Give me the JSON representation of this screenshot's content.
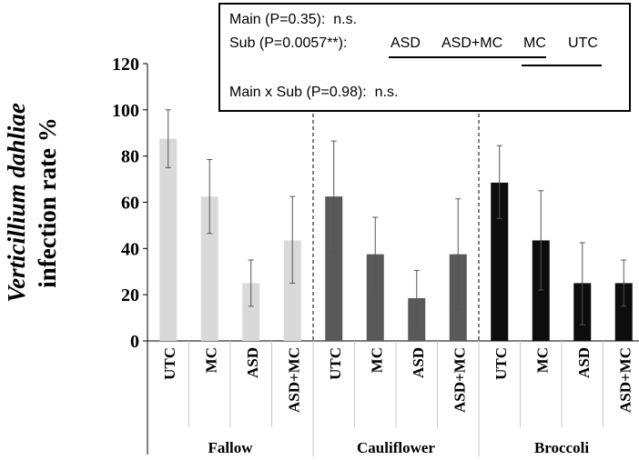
{
  "chart_data": {
    "type": "bar",
    "ylabel_line1": "Verticillium dahliae",
    "ylabel_line2": "infection rate %",
    "ylim": [
      0,
      120
    ],
    "yticks": [
      0,
      20,
      40,
      60,
      80,
      100,
      120
    ],
    "groups": [
      {
        "name": "Fallow",
        "color": "#d9d9d9",
        "bars": [
          {
            "label": "UTC",
            "value": 87.5,
            "err_low": 75,
            "err_high": 100
          },
          {
            "label": "MC",
            "value": 62.5,
            "err_low": 46.5,
            "err_high": 78.5
          },
          {
            "label": "ASD",
            "value": 25,
            "err_low": 15,
            "err_high": 35
          },
          {
            "label": "ASD+MC",
            "value": 43.5,
            "err_low": 25,
            "err_high": 62.5
          }
        ]
      },
      {
        "name": "Cauliflower",
        "color": "#595959",
        "bars": [
          {
            "label": "UTC",
            "value": 62.5,
            "err_low": 38.5,
            "err_high": 86.5
          },
          {
            "label": "MC",
            "value": 37.5,
            "err_low": 21.5,
            "err_high": 53.5
          },
          {
            "label": "ASD",
            "value": 18.5,
            "err_low": 7,
            "err_high": 30.5
          },
          {
            "label": "ASD+MC",
            "value": 37.5,
            "err_low": 13.5,
            "err_high": 61.5
          }
        ]
      },
      {
        "name": "Broccoli",
        "color": "#0d0d0d",
        "bars": [
          {
            "label": "UTC",
            "value": 68.5,
            "err_low": 53,
            "err_high": 84.5
          },
          {
            "label": "MC",
            "value": 43.5,
            "err_low": 22,
            "err_high": 65
          },
          {
            "label": "ASD",
            "value": 25,
            "err_low": 7,
            "err_high": 42.5
          },
          {
            "label": "ASD+MC",
            "value": 25,
            "err_low": 15,
            "err_high": 35
          }
        ]
      }
    ]
  },
  "stats": {
    "main": "Main (P=0.35):  n.s.",
    "sub_prefix": "Sub (P=0.0057**):",
    "sub_treatments": [
      "ASD",
      "ASD+MC",
      "MC",
      "UTC"
    ],
    "interaction": "Main x Sub (P=0.98):  n.s."
  }
}
